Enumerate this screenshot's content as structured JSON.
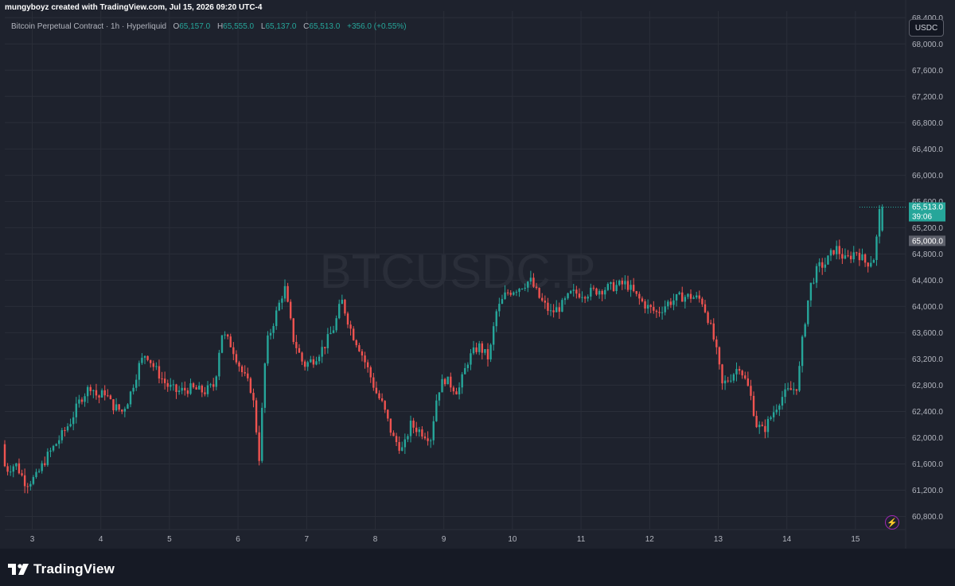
{
  "header": {
    "caption": "mungyboyz created with TradingView.com, Jul 15, 2026 09:20 UTC-4"
  },
  "legend": {
    "symbol_line": "Bitcoin Perpetual Contract · 1h · Hyperliquid",
    "open_label": "O",
    "open": "65,157.0",
    "high_label": "H",
    "high": "65,555.0",
    "low_label": "L",
    "low": "65,137.0",
    "close_label": "C",
    "close": "65,513.0",
    "change": "+356.0 (+0.55%)"
  },
  "watermark": "BTCUSDC.P",
  "currency_button": "USDC",
  "price_labels": {
    "last_price": "65,513.0",
    "countdown": "39:06",
    "marker_price": "65,000.0"
  },
  "footer": {
    "brand": "TradingView"
  },
  "icons": {
    "brand": "tradingview-logo-icon",
    "alert": "lightning-bolt-icon"
  },
  "colors": {
    "up": "#26a69a",
    "down": "#ef5350",
    "background": "#1e222d",
    "grid": "#2a2e39",
    "text": "#b2b5be"
  },
  "chart_data": {
    "type": "candlestick",
    "interval": "1h",
    "y_ticks": [
      "60,800.0",
      "61,200.0",
      "61,600.0",
      "62,000.0",
      "62,400.0",
      "62,800.0",
      "63,200.0",
      "63,600.0",
      "64,000.0",
      "64,400.0",
      "64,800.0",
      "65,200.0",
      "65,600.0",
      "66,000.0",
      "66,400.0",
      "66,800.0",
      "67,200.0",
      "67,600.0",
      "68,000.0",
      "68,400.0"
    ],
    "y_range": [
      60600,
      68500
    ],
    "x_ticks": [
      "3",
      "4",
      "5",
      "6",
      "7",
      "8",
      "9",
      "10",
      "11",
      "12",
      "13",
      "14",
      "15"
    ],
    "x_range_days": [
      2.6,
      15.5
    ],
    "anchors": [
      [
        2.6,
        61900
      ],
      [
        2.65,
        61500
      ],
      [
        2.8,
        61600
      ],
      [
        2.95,
        61300
      ],
      [
        3.1,
        61400
      ],
      [
        3.25,
        61700
      ],
      [
        3.45,
        62000
      ],
      [
        3.6,
        62250
      ],
      [
        3.75,
        62600
      ],
      [
        3.9,
        62800
      ],
      [
        4.0,
        62600
      ],
      [
        4.1,
        62700
      ],
      [
        4.2,
        62500
      ],
      [
        4.35,
        62400
      ],
      [
        4.45,
        62600
      ],
      [
        4.6,
        63100
      ],
      [
        4.7,
        63300
      ],
      [
        4.8,
        63100
      ],
      [
        5.0,
        62800
      ],
      [
        5.15,
        62700
      ],
      [
        5.35,
        62750
      ],
      [
        5.55,
        62700
      ],
      [
        5.7,
        62800
      ],
      [
        5.8,
        63600
      ],
      [
        5.95,
        63400
      ],
      [
        6.1,
        63000
      ],
      [
        6.25,
        62700
      ],
      [
        6.35,
        61700
      ],
      [
        6.45,
        63400
      ],
      [
        6.6,
        63900
      ],
      [
        6.72,
        64300
      ],
      [
        6.85,
        63500
      ],
      [
        7.0,
        63100
      ],
      [
        7.15,
        63200
      ],
      [
        7.3,
        63400
      ],
      [
        7.45,
        63700
      ],
      [
        7.55,
        64100
      ],
      [
        7.7,
        63600
      ],
      [
        7.8,
        63400
      ],
      [
        7.95,
        63000
      ],
      [
        8.05,
        62700
      ],
      [
        8.15,
        62500
      ],
      [
        8.3,
        62000
      ],
      [
        8.45,
        61800
      ],
      [
        8.55,
        62200
      ],
      [
        8.7,
        62100
      ],
      [
        8.85,
        62000
      ],
      [
        8.95,
        62700
      ],
      [
        9.05,
        62900
      ],
      [
        9.25,
        62700
      ],
      [
        9.4,
        63200
      ],
      [
        9.55,
        63400
      ],
      [
        9.7,
        63200
      ],
      [
        9.8,
        63900
      ],
      [
        9.95,
        64200
      ],
      [
        10.15,
        64300
      ],
      [
        10.3,
        64400
      ],
      [
        10.45,
        64100
      ],
      [
        10.6,
        63900
      ],
      [
        10.75,
        64000
      ],
      [
        10.9,
        64200
      ],
      [
        11.1,
        64200
      ],
      [
        11.3,
        64250
      ],
      [
        11.5,
        64300
      ],
      [
        11.7,
        64350
      ],
      [
        11.85,
        64150
      ],
      [
        12.0,
        64000
      ],
      [
        12.15,
        63900
      ],
      [
        12.3,
        64050
      ],
      [
        12.5,
        64150
      ],
      [
        12.65,
        64150
      ],
      [
        12.8,
        64100
      ],
      [
        12.9,
        63800
      ],
      [
        13.0,
        63400
      ],
      [
        13.1,
        62800
      ],
      [
        13.2,
        62900
      ],
      [
        13.35,
        63100
      ],
      [
        13.5,
        62700
      ],
      [
        13.6,
        62200
      ],
      [
        13.7,
        62100
      ],
      [
        13.8,
        62300
      ],
      [
        13.95,
        62600
      ],
      [
        14.05,
        62700
      ],
      [
        14.15,
        62750
      ],
      [
        14.2,
        62800
      ],
      [
        14.28,
        63600
      ],
      [
        14.38,
        64300
      ],
      [
        14.5,
        64600
      ],
      [
        14.6,
        64650
      ],
      [
        14.75,
        64900
      ],
      [
        14.9,
        64700
      ],
      [
        15.05,
        64850
      ],
      [
        15.2,
        64650
      ],
      [
        15.32,
        64750
      ],
      [
        15.4,
        65513
      ]
    ]
  }
}
